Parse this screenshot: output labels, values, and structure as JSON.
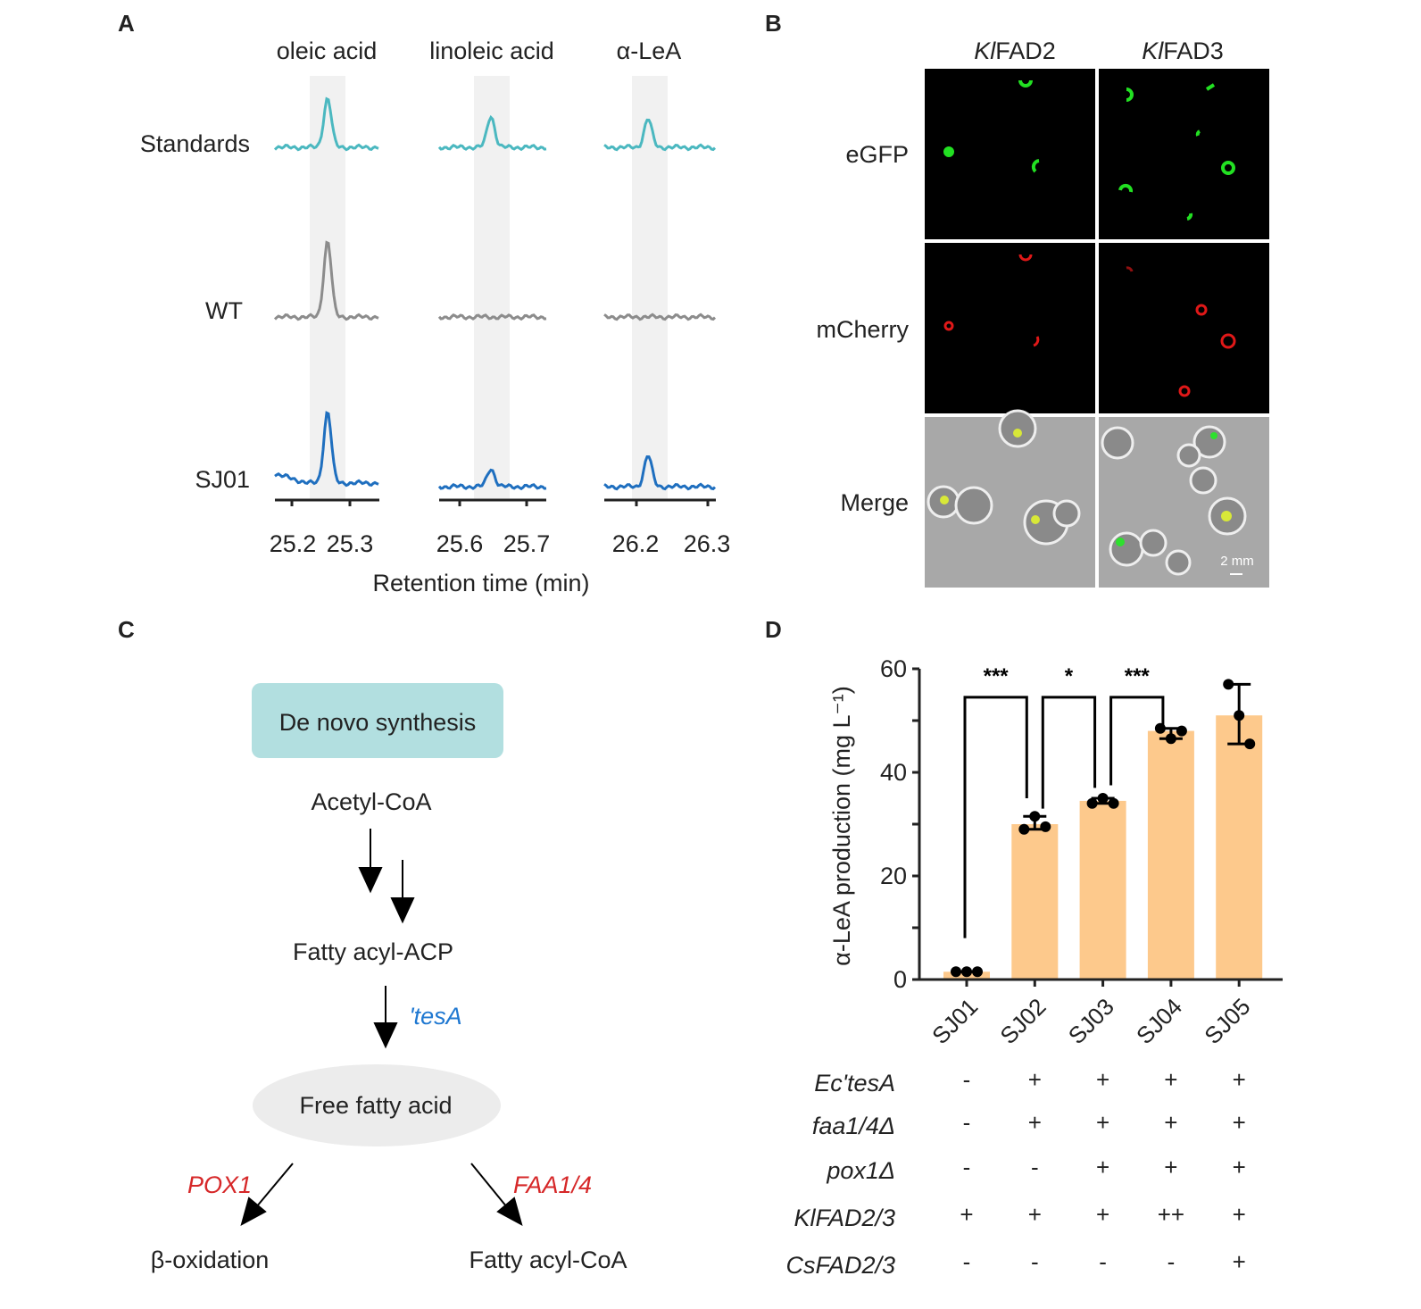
{
  "panels": {
    "a": "A",
    "b": "B",
    "c": "C",
    "d": "D"
  },
  "panel_a": {
    "columns": [
      "oleic acid",
      "linoleic acid",
      "α-LeA"
    ],
    "rows": [
      "Standards",
      "WT",
      "SJ01"
    ],
    "tick_labels": [
      [
        "25.2",
        "25.3"
      ],
      [
        "25.6",
        "25.7"
      ],
      [
        "26.2",
        "26.3"
      ]
    ],
    "xlabel": "Retention time (min)",
    "colors": {
      "Standards": "#4bb8c0",
      "WT": "#8c8c8c",
      "SJ01": "#1f6fbf"
    },
    "peaks": {
      "Standards": [
        0.55,
        0.35,
        0.32
      ],
      "WT": [
        0.85,
        0,
        0
      ],
      "SJ01": [
        0.8,
        0.2,
        0.35
      ]
    }
  },
  "panel_b": {
    "columns": [
      "Kl",
      "FAD2",
      "Kl",
      "FAD3"
    ],
    "rows": [
      "eGFP",
      "mCherry",
      "Merge"
    ],
    "scale_bar": "2 mm"
  },
  "panel_c": {
    "box": "De novo synthesis",
    "acetyl": "Acetyl-CoA",
    "acp": "Fatty acyl-ACP",
    "tesa": "'tesA",
    "ffa": "Free fatty acid",
    "pox1": "POX1",
    "faa": "FAA1/4",
    "beta": "β-oxidation",
    "acylcoa": "Fatty acyl-CoA",
    "colors": {
      "box": "#b2dfe0",
      "tesa": "#1f78d1",
      "red": "#d62728",
      "ellipse": "#ececec"
    }
  },
  "chart_data": {
    "type": "bar",
    "categories": [
      "SJ01",
      "SJ02",
      "SJ03",
      "SJ04",
      "SJ05"
    ],
    "values": [
      1.5,
      30,
      34.5,
      48,
      51
    ],
    "points": [
      [
        1.5,
        1.5,
        1.5
      ],
      [
        29,
        31.5,
        29.5
      ],
      [
        34,
        35,
        34
      ],
      [
        48.5,
        46.5,
        48
      ],
      [
        57,
        51,
        45.5
      ]
    ],
    "ylabel": "α-LeA production (mg L⁻¹)",
    "ylim": [
      0,
      60
    ],
    "yticks": [
      "0",
      "20",
      "40",
      "60"
    ],
    "bar_color": "#fdc98c",
    "significance": [
      {
        "from": "SJ01",
        "to": "SJ02",
        "label": "***"
      },
      {
        "from": "SJ02",
        "to": "SJ03",
        "label": "*"
      },
      {
        "from": "SJ03",
        "to": "SJ04",
        "label": "***"
      }
    ],
    "genotype_table": {
      "rows": [
        {
          "label": "Ec'tesA",
          "values": [
            "-",
            "+",
            "+",
            "+",
            "+"
          ]
        },
        {
          "label": "faa1/4Δ",
          "values": [
            "-",
            "+",
            "+",
            "+",
            "+"
          ]
        },
        {
          "label": "pox1Δ",
          "values": [
            "-",
            "-",
            "+",
            "+",
            "+"
          ]
        },
        {
          "label": "KlFAD2/3",
          "values": [
            "+",
            "+",
            "+",
            "++",
            "+"
          ]
        },
        {
          "label": "CsFAD2/3",
          "values": [
            "-",
            "-",
            "-",
            "-",
            "+"
          ]
        }
      ]
    }
  }
}
